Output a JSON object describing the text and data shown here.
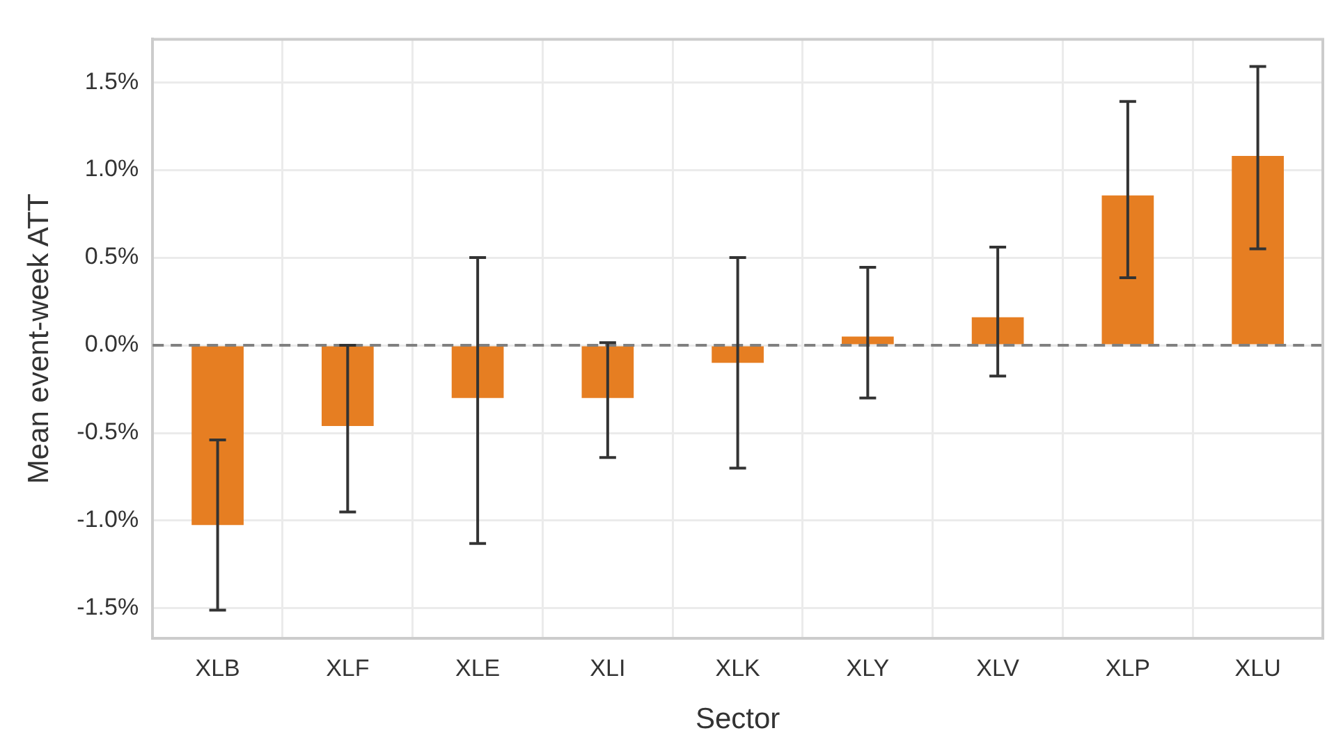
{
  "chart_data": {
    "type": "bar",
    "xlabel": "Sector",
    "ylabel": "Mean event-week ATT",
    "categories": [
      "XLB",
      "XLF",
      "XLE",
      "XLI",
      "XLK",
      "XLY",
      "XLV",
      "XLP",
      "XLU"
    ],
    "values": [
      -1.025,
      -0.46,
      -0.3,
      -0.3,
      -0.1,
      0.05,
      0.16,
      0.855,
      1.08
    ],
    "errors": [
      [
        -1.51,
        -0.54
      ],
      [
        -0.95,
        0.0
      ],
      [
        -1.13,
        0.5
      ],
      [
        -0.64,
        0.015
      ],
      [
        -0.7,
        0.5
      ],
      [
        -0.3,
        0.445
      ],
      [
        -0.175,
        0.56
      ],
      [
        0.385,
        1.39
      ],
      [
        0.55,
        1.59
      ]
    ],
    "color": "#e67e22",
    "ylim": [
      -1.67,
      1.745
    ],
    "yticks": [
      {
        "value": -1.5,
        "label": "-1.5%"
      },
      {
        "value": -1.0,
        "label": "-1.0%"
      },
      {
        "value": -0.5,
        "label": "-0.5%"
      },
      {
        "value": 0,
        "label": "0.0%"
      },
      {
        "value": 0.5,
        "label": "0.5%"
      },
      {
        "value": 1.0,
        "label": "1.0%"
      },
      {
        "value": 1.5,
        "label": "1.5%"
      }
    ],
    "ref_lines": [
      {
        "axis": "y",
        "value": 0,
        "color": "#808080",
        "line_style": "dashed"
      }
    ],
    "grid": true,
    "legend": false
  }
}
